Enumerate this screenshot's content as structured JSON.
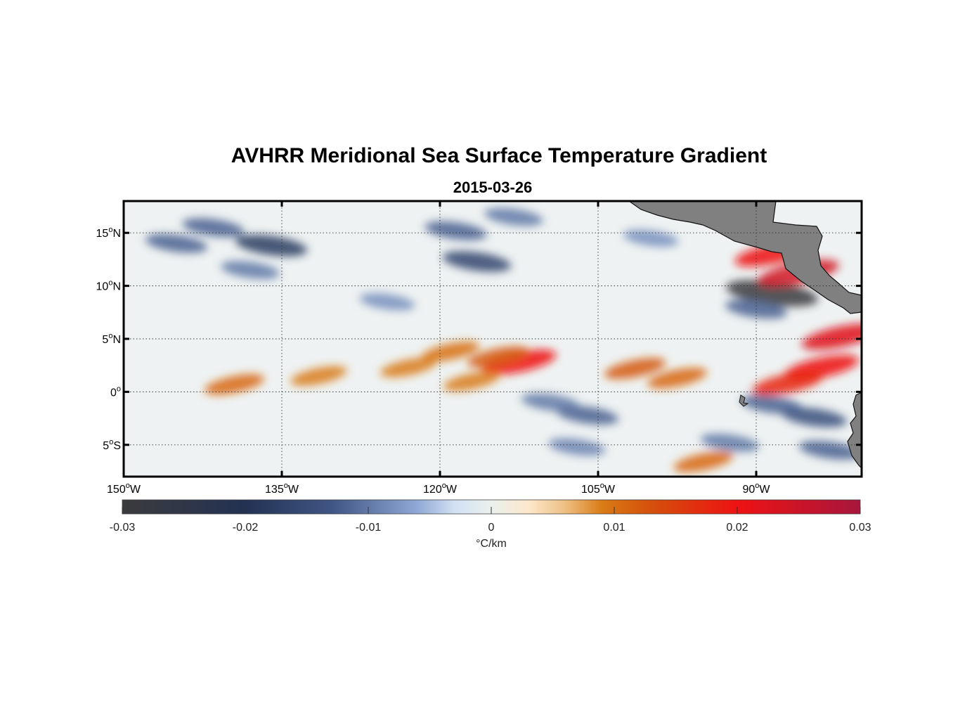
{
  "title": "AVHRR Meridional Sea Surface Temperature Gradient",
  "subtitle": "2015-03-26",
  "map": {
    "lon_range": [
      -150,
      -80
    ],
    "lat_range": [
      -8,
      18
    ],
    "grid": "dotted",
    "lon_ticks": [
      {
        "value": -150,
        "num": "150",
        "hemi": "W"
      },
      {
        "value": -135,
        "num": "135",
        "hemi": "W"
      },
      {
        "value": -120,
        "num": "120",
        "hemi": "W"
      },
      {
        "value": -105,
        "num": "105",
        "hemi": "W"
      },
      {
        "value": -90,
        "num": "90",
        "hemi": "W"
      }
    ],
    "lat_ticks": [
      {
        "value": 15,
        "num": "15",
        "hemi": "N"
      },
      {
        "value": 10,
        "num": "10",
        "hemi": "N"
      },
      {
        "value": 5,
        "num": "5",
        "hemi": "N"
      },
      {
        "value": 0,
        "num": "0",
        "hemi": ""
      },
      {
        "value": -5,
        "num": "5",
        "hemi": "S"
      }
    ],
    "degree_symbol": "o",
    "land_color": "#808080",
    "features": [
      {
        "lon": -136,
        "lat": 13.8,
        "val": -0.018
      },
      {
        "lon": -141.5,
        "lat": 15.5,
        "val": -0.012
      },
      {
        "lon": -145,
        "lat": 14,
        "val": -0.012
      },
      {
        "lon": -138,
        "lat": 11.5,
        "val": -0.01
      },
      {
        "lon": -116.5,
        "lat": 12.3,
        "val": -0.016
      },
      {
        "lon": -118.5,
        "lat": 15.2,
        "val": -0.012
      },
      {
        "lon": -113,
        "lat": 16.5,
        "val": -0.01
      },
      {
        "lon": -125,
        "lat": 8.5,
        "val": -0.008
      },
      {
        "lon": -100,
        "lat": 14.5,
        "val": -0.008
      },
      {
        "lon": -88.5,
        "lat": 9.3,
        "val": -0.03
      },
      {
        "lon": -86,
        "lat": 11.2,
        "val": 0.024
      },
      {
        "lon": -88.5,
        "lat": 13,
        "val": 0.02
      },
      {
        "lon": -82,
        "lat": 5.2,
        "val": 0.022
      },
      {
        "lon": -83.8,
        "lat": 2.3,
        "val": 0.02
      },
      {
        "lon": -87,
        "lat": 0.8,
        "val": 0.018
      },
      {
        "lon": -112.5,
        "lat": 2.8,
        "val": 0.02
      },
      {
        "lon": -114.5,
        "lat": 3.3,
        "val": 0.012
      },
      {
        "lon": -119,
        "lat": 3.8,
        "val": 0.01
      },
      {
        "lon": -123,
        "lat": 2.3,
        "val": 0.009
      },
      {
        "lon": -117,
        "lat": 1,
        "val": 0.009
      },
      {
        "lon": -101.5,
        "lat": 2.2,
        "val": 0.012
      },
      {
        "lon": -97.5,
        "lat": 1.3,
        "val": 0.011
      },
      {
        "lon": -139.5,
        "lat": 0.7,
        "val": 0.011
      },
      {
        "lon": -131.5,
        "lat": 1.5,
        "val": 0.009
      },
      {
        "lon": -95,
        "lat": -6.6,
        "val": 0.011
      },
      {
        "lon": -84.5,
        "lat": -2.4,
        "val": -0.014
      },
      {
        "lon": -88.5,
        "lat": -1.2,
        "val": -0.012
      },
      {
        "lon": -106,
        "lat": -2.2,
        "val": -0.012
      },
      {
        "lon": -109.5,
        "lat": -1,
        "val": -0.01
      },
      {
        "lon": -92.5,
        "lat": -4.8,
        "val": -0.01
      },
      {
        "lon": -107,
        "lat": -5.2,
        "val": -0.009
      },
      {
        "lon": -83,
        "lat": -5.5,
        "val": -0.012
      },
      {
        "lon": -90,
        "lat": 7.8,
        "val": -0.012
      }
    ]
  },
  "colorbar": {
    "label": "°C/km",
    "range": [
      -0.03,
      0.03
    ],
    "ticks": [
      {
        "value": -0.03,
        "label": "-0.03"
      },
      {
        "value": -0.02,
        "label": "-0.02"
      },
      {
        "value": -0.01,
        "label": "-0.01"
      },
      {
        "value": 0,
        "label": "0"
      },
      {
        "value": 0.01,
        "label": "0.01"
      },
      {
        "value": 0.02,
        "label": "0.02"
      },
      {
        "value": 0.03,
        "label": "0.03"
      }
    ],
    "stops": [
      {
        "value": -0.03,
        "color": "#3b3b3d"
      },
      {
        "value": -0.02,
        "color": "#233253"
      },
      {
        "value": -0.013,
        "color": "#3f5584"
      },
      {
        "value": -0.006,
        "color": "#8fa8d5"
      },
      {
        "value": -0.003,
        "color": "#d2e0f4"
      },
      {
        "value": 0,
        "color": "#eaf0ec"
      },
      {
        "value": 0.003,
        "color": "#fde8cc"
      },
      {
        "value": 0.006,
        "color": "#eebf82"
      },
      {
        "value": 0.009,
        "color": "#d97b16"
      },
      {
        "value": 0.013,
        "color": "#d4500b"
      },
      {
        "value": 0.02,
        "color": "#ee1213"
      },
      {
        "value": 0.03,
        "color": "#a7163d"
      }
    ]
  }
}
